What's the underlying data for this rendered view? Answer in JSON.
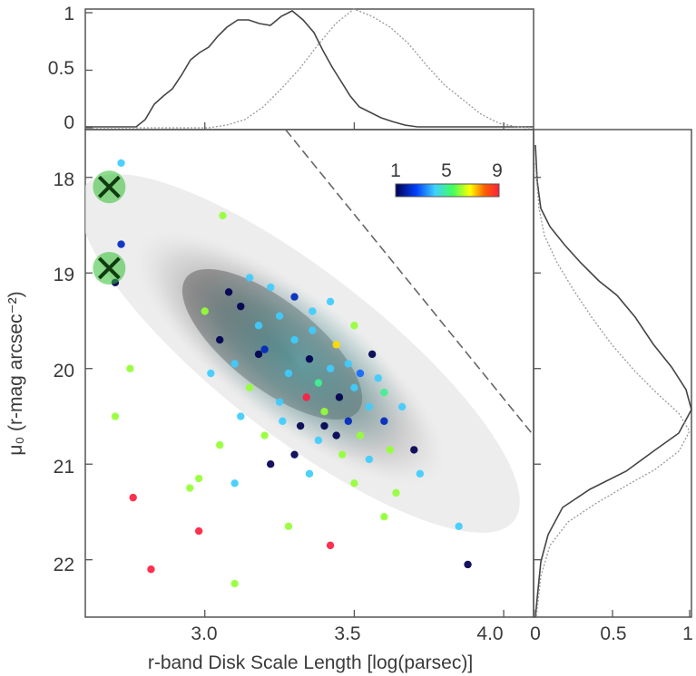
{
  "chart_data": {
    "type": "scatter",
    "title": "",
    "xlabel": "r-band Disk Scale Length [log(parsec)]",
    "ylabel": "μ₀ (r-mag arcsec⁻²)",
    "xlim": [
      2.6,
      4.1
    ],
    "ylim": [
      22.6,
      17.5
    ],
    "x_ticks": [
      "3.0",
      "3.5",
      "4.0"
    ],
    "y_ticks": [
      "18",
      "19",
      "20",
      "21",
      "22"
    ],
    "top_hist": {
      "ylim": [
        0,
        1
      ],
      "y_ticks": [
        "0",
        "0.5",
        "1"
      ]
    },
    "right_hist": {
      "xlim": [
        0,
        1
      ],
      "x_ticks": [
        "0",
        "0.5",
        "1"
      ]
    },
    "colorbar": {
      "labels": [
        "1",
        "5",
        "9"
      ],
      "range": [
        1,
        9
      ]
    },
    "cutoff_line": [
      [
        3.27,
        17.5
      ],
      [
        4.1,
        20.7
      ]
    ],
    "crosses": [
      {
        "x": 2.68,
        "y": 18.1
      },
      {
        "x": 2.68,
        "y": 18.95
      }
    ],
    "points": [
      {
        "x": 3.12,
        "y": 19.35,
        "c": 1
      },
      {
        "x": 3.18,
        "y": 19.55,
        "c": 4
      },
      {
        "x": 3.25,
        "y": 19.45,
        "c": 4
      },
      {
        "x": 3.2,
        "y": 19.8,
        "c": 2
      },
      {
        "x": 3.3,
        "y": 19.7,
        "c": 4
      },
      {
        "x": 3.35,
        "y": 19.9,
        "c": 1
      },
      {
        "x": 3.28,
        "y": 20.05,
        "c": 4
      },
      {
        "x": 3.38,
        "y": 20.15,
        "c": 5
      },
      {
        "x": 3.42,
        "y": 20.0,
        "c": 4
      },
      {
        "x": 3.45,
        "y": 20.3,
        "c": 1
      },
      {
        "x": 3.5,
        "y": 20.2,
        "c": 4
      },
      {
        "x": 3.4,
        "y": 20.45,
        "c": 6
      },
      {
        "x": 3.48,
        "y": 20.55,
        "c": 2
      },
      {
        "x": 3.55,
        "y": 20.4,
        "c": 4
      },
      {
        "x": 3.52,
        "y": 20.7,
        "c": 6
      },
      {
        "x": 3.32,
        "y": 20.6,
        "c": 1
      },
      {
        "x": 3.25,
        "y": 20.35,
        "c": 4
      },
      {
        "x": 3.15,
        "y": 20.2,
        "c": 6
      },
      {
        "x": 3.1,
        "y": 19.95,
        "c": 4
      },
      {
        "x": 3.05,
        "y": 19.7,
        "c": 1
      },
      {
        "x": 3.22,
        "y": 19.15,
        "c": 4
      },
      {
        "x": 3.3,
        "y": 19.25,
        "c": 2
      },
      {
        "x": 3.36,
        "y": 19.6,
        "c": 4
      },
      {
        "x": 3.44,
        "y": 19.75,
        "c": 7
      },
      {
        "x": 3.58,
        "y": 20.1,
        "c": 4
      },
      {
        "x": 3.6,
        "y": 20.55,
        "c": 2
      },
      {
        "x": 3.62,
        "y": 20.85,
        "c": 6
      },
      {
        "x": 3.55,
        "y": 20.95,
        "c": 4
      },
      {
        "x": 3.46,
        "y": 20.9,
        "c": 6
      },
      {
        "x": 3.38,
        "y": 20.75,
        "c": 4
      },
      {
        "x": 3.3,
        "y": 20.9,
        "c": 1
      },
      {
        "x": 3.2,
        "y": 20.7,
        "c": 6
      },
      {
        "x": 3.12,
        "y": 20.5,
        "c": 4
      },
      {
        "x": 3.0,
        "y": 19.4,
        "c": 6
      },
      {
        "x": 3.08,
        "y": 19.2,
        "c": 1
      },
      {
        "x": 3.15,
        "y": 19.05,
        "c": 4
      },
      {
        "x": 3.42,
        "y": 19.3,
        "c": 4
      },
      {
        "x": 3.5,
        "y": 19.55,
        "c": 6
      },
      {
        "x": 3.48,
        "y": 19.95,
        "c": 4
      },
      {
        "x": 3.34,
        "y": 20.3,
        "c": 9
      },
      {
        "x": 3.26,
        "y": 20.55,
        "c": 4
      },
      {
        "x": 3.4,
        "y": 20.6,
        "c": 1
      },
      {
        "x": 3.66,
        "y": 20.4,
        "c": 4
      },
      {
        "x": 3.7,
        "y": 20.85,
        "c": 1
      },
      {
        "x": 3.72,
        "y": 21.1,
        "c": 4
      },
      {
        "x": 3.64,
        "y": 21.3,
        "c": 6
      },
      {
        "x": 3.5,
        "y": 21.2,
        "c": 6
      },
      {
        "x": 3.35,
        "y": 21.1,
        "c": 4
      },
      {
        "x": 3.22,
        "y": 21.0,
        "c": 1
      },
      {
        "x": 3.05,
        "y": 20.8,
        "c": 6
      },
      {
        "x": 2.98,
        "y": 21.15,
        "c": 6
      },
      {
        "x": 3.02,
        "y": 20.05,
        "c": 4
      },
      {
        "x": 3.1,
        "y": 21.2,
        "c": 4
      },
      {
        "x": 2.72,
        "y": 18.7,
        "c": 2
      },
      {
        "x": 2.75,
        "y": 20.0,
        "c": 6
      },
      {
        "x": 2.7,
        "y": 20.5,
        "c": 6
      },
      {
        "x": 2.7,
        "y": 19.1,
        "c": 1
      },
      {
        "x": 2.76,
        "y": 21.35,
        "c": 9
      },
      {
        "x": 2.98,
        "y": 21.7,
        "c": 9
      },
      {
        "x": 2.82,
        "y": 22.1,
        "c": 9
      },
      {
        "x": 3.1,
        "y": 22.25,
        "c": 6
      },
      {
        "x": 3.42,
        "y": 21.85,
        "c": 9
      },
      {
        "x": 3.88,
        "y": 22.05,
        "c": 1
      },
      {
        "x": 3.85,
        "y": 21.65,
        "c": 4
      },
      {
        "x": 3.6,
        "y": 21.55,
        "c": 6
      },
      {
        "x": 3.28,
        "y": 21.65,
        "c": 6
      },
      {
        "x": 2.72,
        "y": 17.85,
        "c": 4
      },
      {
        "x": 2.95,
        "y": 21.25,
        "c": 6
      },
      {
        "x": 3.06,
        "y": 18.4,
        "c": 6
      },
      {
        "x": 3.56,
        "y": 19.85,
        "c": 1
      },
      {
        "x": 3.6,
        "y": 20.25,
        "c": 5
      },
      {
        "x": 3.18,
        "y": 19.85,
        "c": 1
      },
      {
        "x": 3.36,
        "y": 19.4,
        "c": 4
      },
      {
        "x": 3.44,
        "y": 20.7,
        "c": 1
      },
      {
        "x": 3.52,
        "y": 20.05,
        "c": 3
      }
    ]
  }
}
